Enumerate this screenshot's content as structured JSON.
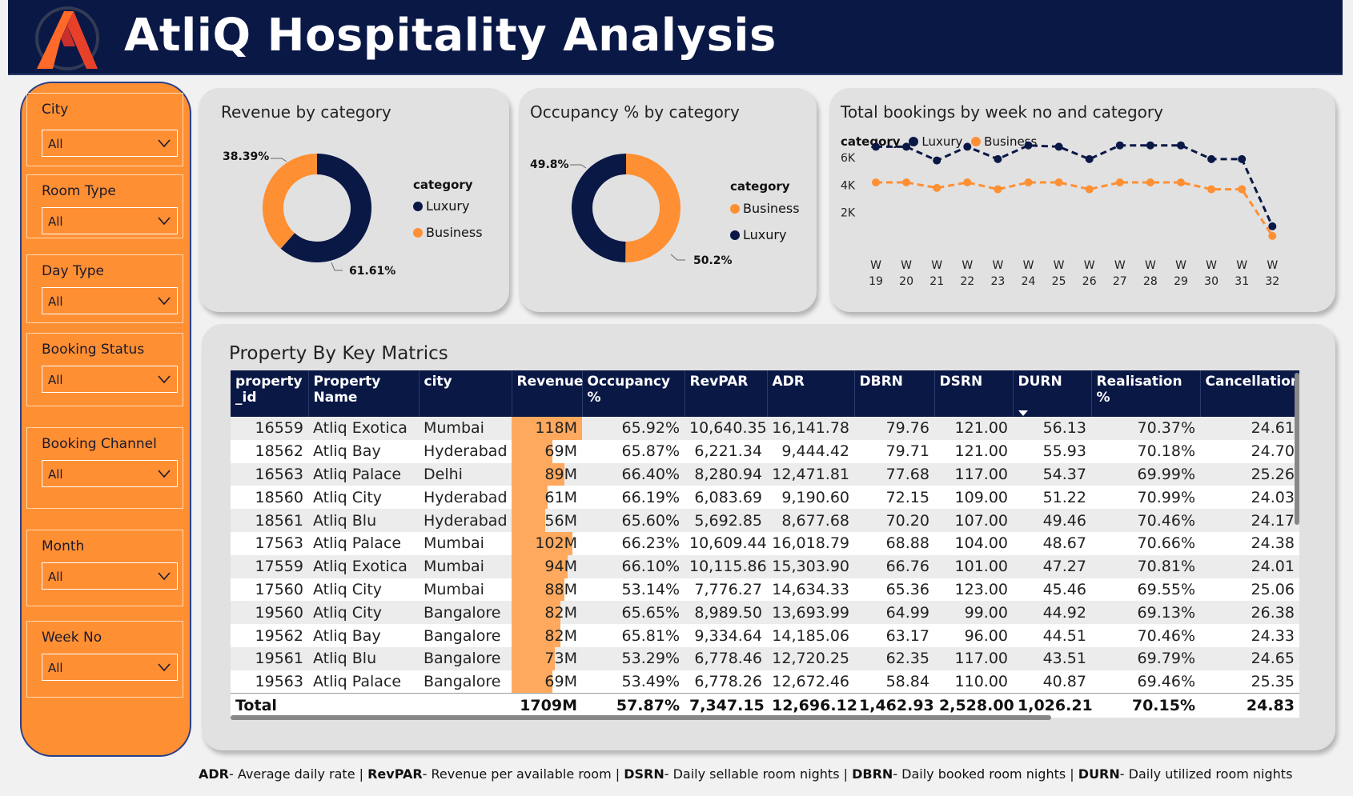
{
  "header": {
    "title": "AtliQ Hospitality Analysis",
    "logo_icon": "atliq-logo-icon"
  },
  "slicers": [
    {
      "label": "City",
      "value": "All"
    },
    {
      "label": "Room Type",
      "value": "All"
    },
    {
      "label": "Day Type",
      "value": "All"
    },
    {
      "label": "Booking Status",
      "value": "All"
    },
    {
      "label": "Booking Channel",
      "value": "All"
    },
    {
      "label": "Month",
      "value": "All"
    },
    {
      "label": "Week No",
      "value": "All"
    }
  ],
  "colors": {
    "navy": "#0a1846",
    "orange": "#ff8f33",
    "panel": "#e1e1e1"
  },
  "revenue_card": {
    "title": "Revenue by category",
    "label_business": "38.39%",
    "label_luxury": "61.61%",
    "legend_title": "category",
    "legend": [
      "Luxury",
      "Business"
    ]
  },
  "occupancy_card": {
    "title": "Occupancy % by category",
    "label_luxury": "49.8%",
    "label_business": "50.2%",
    "legend_title": "category",
    "legend": [
      "Business",
      "Luxury"
    ]
  },
  "bookings_card": {
    "title": "Total bookings by week no and category",
    "legend_title": "category",
    "legend": [
      "Luxury",
      "Business"
    ],
    "y_ticks": [
      "6K",
      "4K",
      "2K"
    ]
  },
  "chart_data": [
    {
      "type": "pie",
      "title": "Revenue by category",
      "labels": [
        "Luxury",
        "Business"
      ],
      "values": [
        61.61,
        38.39
      ]
    },
    {
      "type": "pie",
      "title": "Occupancy % by category",
      "labels": [
        "Business",
        "Luxury"
      ],
      "values": [
        50.2,
        49.8
      ]
    },
    {
      "type": "line",
      "title": "Total bookings by week no and category",
      "categories": [
        "W 19",
        "W 20",
        "W 21",
        "W 22",
        "W 23",
        "W 24",
        "W 25",
        "W 26",
        "W 27",
        "W 28",
        "W 29",
        "W 30",
        "W 31",
        "W 32"
      ],
      "series": [
        {
          "name": "Luxury",
          "values": [
            6800,
            6800,
            5800,
            6800,
            5900,
            6900,
            6800,
            5900,
            6900,
            6900,
            6900,
            5900,
            5900,
            1000
          ]
        },
        {
          "name": "Business",
          "values": [
            4200,
            4200,
            3800,
            4200,
            3700,
            4200,
            4200,
            3700,
            4200,
            4200,
            4200,
            3700,
            3700,
            300
          ]
        }
      ],
      "ylim": [
        0,
        7000
      ],
      "y_ticks": [
        "6K",
        "4K",
        "2K"
      ],
      "grid": false,
      "legend": "top-left"
    }
  ],
  "table": {
    "title": "Property By Key Matrics",
    "columns": [
      "property _id",
      "Property Name",
      "city",
      "Revenue",
      "Occupancy %",
      "RevPAR",
      "ADR",
      "DBRN",
      "DSRN",
      "DURN",
      "Realisation %",
      "Cancellation"
    ],
    "revenue_max": 118,
    "rows": [
      [
        "16559",
        "Atliq Exotica",
        "Mumbai",
        "118M",
        118,
        "65.92%",
        "10,640.35",
        "16,141.78",
        "79.76",
        "121.00",
        "56.13",
        "70.37%",
        "24.61"
      ],
      [
        "18562",
        "Atliq Bay",
        "Hyderabad",
        "69M",
        69,
        "65.87%",
        "6,221.34",
        "9,444.42",
        "79.71",
        "121.00",
        "55.93",
        "70.18%",
        "24.70"
      ],
      [
        "16563",
        "Atliq Palace",
        "Delhi",
        "89M",
        89,
        "66.40%",
        "8,280.94",
        "12,471.81",
        "77.68",
        "117.00",
        "54.37",
        "69.99%",
        "25.26"
      ],
      [
        "18560",
        "Atliq City",
        "Hyderabad",
        "61M",
        61,
        "66.19%",
        "6,083.69",
        "9,190.60",
        "72.15",
        "109.00",
        "51.22",
        "70.99%",
        "24.03"
      ],
      [
        "18561",
        "Atliq Blu",
        "Hyderabad",
        "56M",
        56,
        "65.60%",
        "5,692.85",
        "8,677.68",
        "70.20",
        "107.00",
        "49.46",
        "70.46%",
        "24.17"
      ],
      [
        "17563",
        "Atliq Palace",
        "Mumbai",
        "102M",
        102,
        "66.23%",
        "10,609.44",
        "16,018.79",
        "68.88",
        "104.00",
        "48.67",
        "70.66%",
        "24.38"
      ],
      [
        "17559",
        "Atliq Exotica",
        "Mumbai",
        "94M",
        94,
        "66.10%",
        "10,115.86",
        "15,303.90",
        "66.76",
        "101.00",
        "47.27",
        "70.81%",
        "24.01"
      ],
      [
        "17560",
        "Atliq City",
        "Mumbai",
        "88M",
        88,
        "53.14%",
        "7,776.27",
        "14,634.33",
        "65.36",
        "123.00",
        "45.46",
        "69.55%",
        "25.06"
      ],
      [
        "19560",
        "Atliq City",
        "Bangalore",
        "82M",
        82,
        "65.65%",
        "8,989.50",
        "13,693.99",
        "64.99",
        "99.00",
        "44.92",
        "69.13%",
        "26.38"
      ],
      [
        "19562",
        "Atliq Bay",
        "Bangalore",
        "82M",
        82,
        "65.81%",
        "9,334.64",
        "14,185.06",
        "63.17",
        "96.00",
        "44.51",
        "70.46%",
        "24.33"
      ],
      [
        "19561",
        "Atliq Blu",
        "Bangalore",
        "73M",
        73,
        "53.29%",
        "6,778.46",
        "12,720.25",
        "62.35",
        "117.00",
        "43.51",
        "69.79%",
        "24.65"
      ],
      [
        "19563",
        "Atliq Palace",
        "Bangalore",
        "69M",
        69,
        "53.49%",
        "6,778.26",
        "12,672.46",
        "58.84",
        "110.00",
        "40.87",
        "69.46%",
        "25.35"
      ]
    ],
    "total": [
      "Total",
      "",
      "",
      "1709M",
      "57.87%",
      "7,347.15",
      "12,696.12",
      "1,462.93",
      "2,528.00",
      "1,026.21",
      "70.15%",
      "24.83"
    ]
  },
  "footnote": [
    {
      "term": "ADR",
      "desc": "- Average daily rate | "
    },
    {
      "term": "RevPAR",
      "desc": "- Revenue per available room | "
    },
    {
      "term": "DSRN",
      "desc": "- Daily sellable room nights | "
    },
    {
      "term": "DBRN",
      "desc": "- Daily booked room nights | "
    },
    {
      "term": "DURN",
      "desc": "- Daily utilized room nights"
    }
  ]
}
